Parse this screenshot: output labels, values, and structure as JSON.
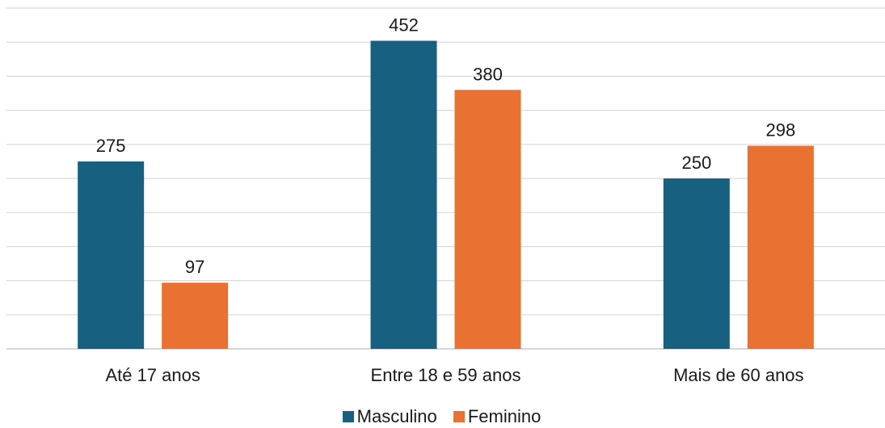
{
  "chart_data": {
    "type": "bar",
    "categories": [
      "Até 17 anos",
      "Entre 18 e 59 anos",
      "Mais de 60 anos"
    ],
    "series": [
      {
        "name": "Masculino",
        "values": [
          275,
          452,
          250
        ],
        "color": "#17607f"
      },
      {
        "name": "Feminino",
        "values": [
          97,
          380,
          298
        ],
        "color": "#e97132"
      }
    ],
    "title": "",
    "xlabel": "",
    "ylabel": "",
    "ylim": [
      0,
      500
    ],
    "grid": true,
    "legend_position": "bottom"
  }
}
